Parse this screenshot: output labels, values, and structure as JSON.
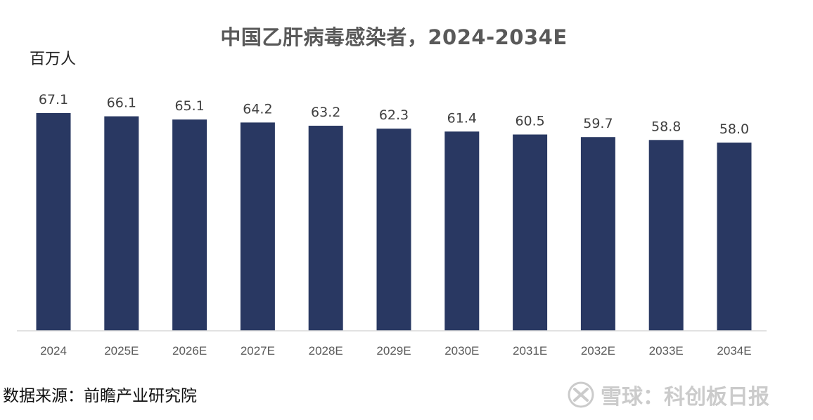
{
  "chart_data": {
    "type": "bar",
    "title": "中国乙肝病毒感染者，2024-2034E",
    "ylabel": "百万人",
    "xlabel": "",
    "categories": [
      "2024",
      "2025E",
      "2026E",
      "2027E",
      "2028E",
      "2029E",
      "2030E",
      "2031E",
      "2032E",
      "2033E",
      "2034E"
    ],
    "values": [
      67.1,
      66.1,
      65.1,
      64.2,
      63.2,
      62.3,
      61.4,
      60.5,
      59.7,
      58.8,
      58.0
    ],
    "value_labels": [
      "67.1",
      "66.1",
      "65.1",
      "64.2",
      "63.2",
      "62.3",
      "61.4",
      "60.5",
      "59.7",
      "58.8",
      "58.0"
    ],
    "ylim": [
      0,
      67.1
    ],
    "grid": false,
    "legend": "none",
    "bar_color": "#293862"
  },
  "source": "数据来源：前瞻产业研究院",
  "watermark": {
    "text": "雪球：科创板日报",
    "icon": "xueqiu-logo-icon"
  }
}
